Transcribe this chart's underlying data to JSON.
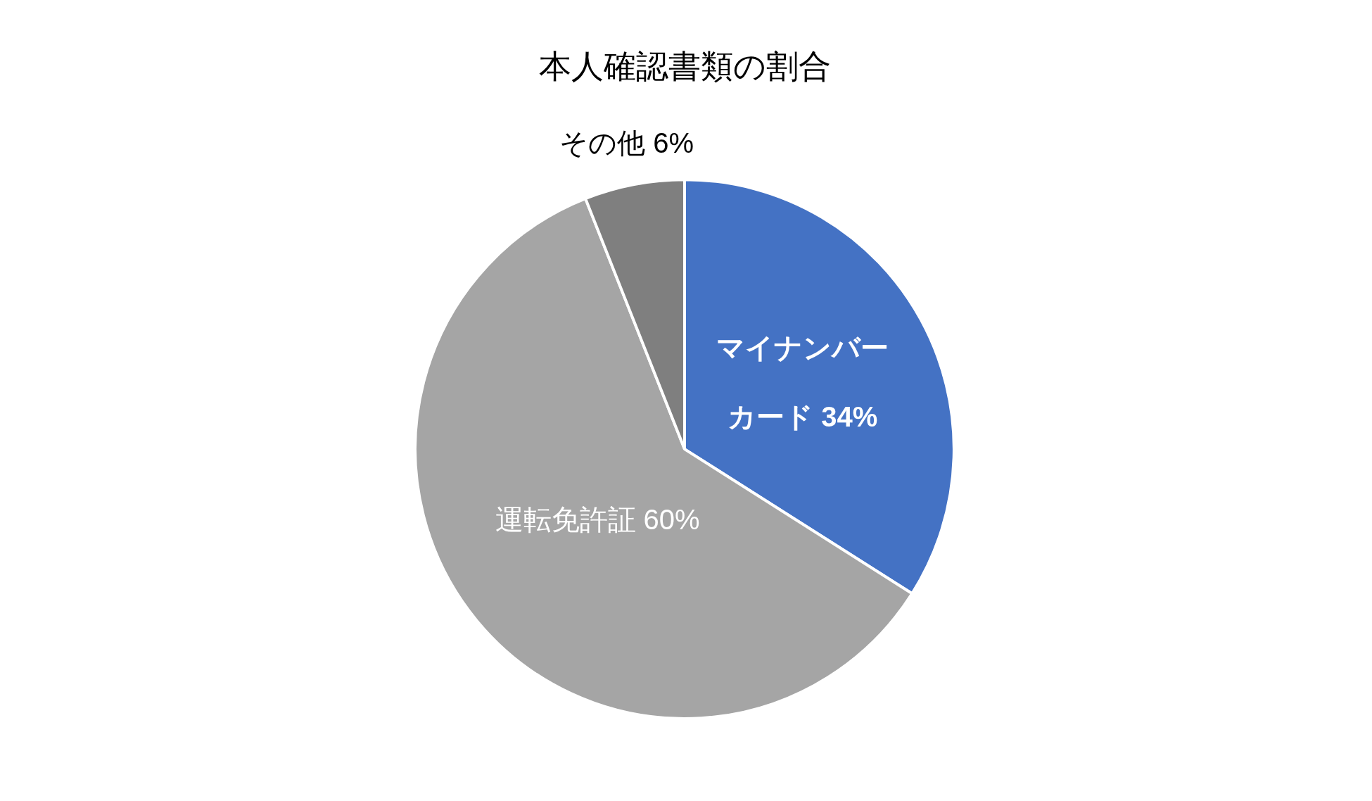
{
  "chart_data": {
    "type": "pie",
    "title": "本人確認書類の割合",
    "categories": [
      "マイナンバーカード",
      "運転免許証",
      "その他"
    ],
    "values": [
      34,
      60,
      6
    ],
    "value_labels": [
      "34%",
      "60%",
      "6%"
    ],
    "colors": [
      "#4472c4",
      "#a5a5a5",
      "#7f7f7f"
    ]
  }
}
